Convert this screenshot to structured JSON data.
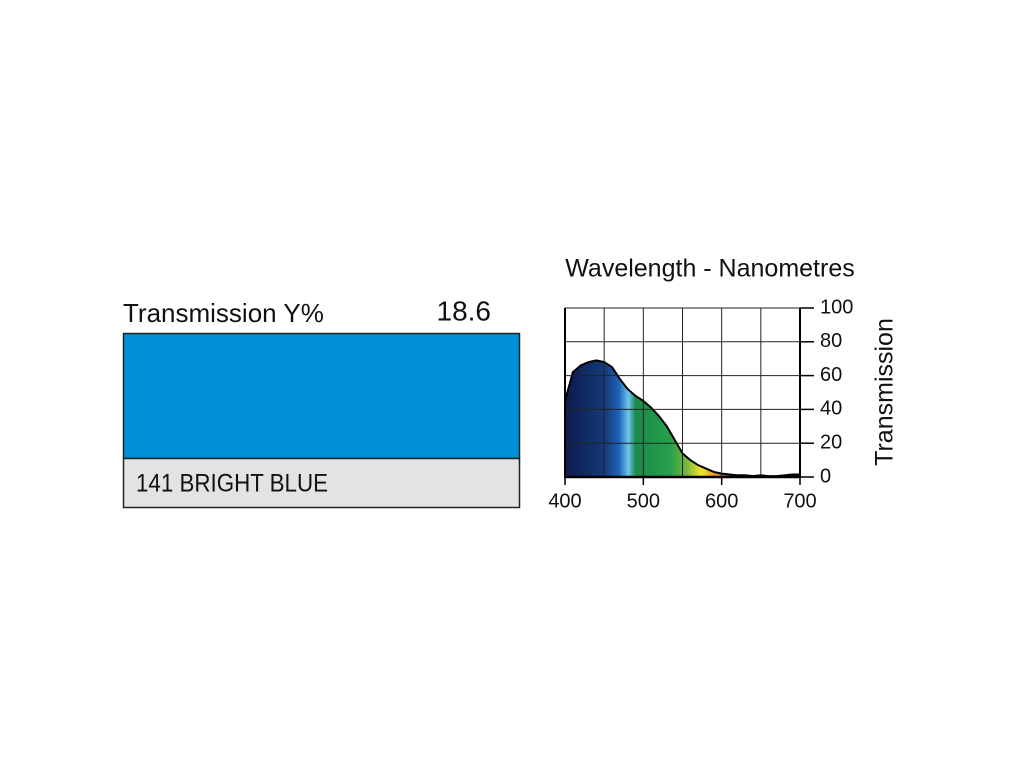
{
  "swatch": {
    "label": "Transmission Y%",
    "value": 18.6,
    "name": "141 BRIGHT BLUE",
    "color": "#0090d8",
    "name_background": "#e2e3e5"
  },
  "chart_data": {
    "type": "area",
    "title": "Wavelength - Nanometres",
    "ylabel": "Transmission",
    "x": [
      400,
      410,
      420,
      430,
      440,
      450,
      460,
      470,
      480,
      490,
      500,
      510,
      520,
      530,
      540,
      550,
      560,
      570,
      580,
      590,
      600,
      610,
      620,
      630,
      640,
      650,
      660,
      670,
      680,
      690,
      700
    ],
    "values": [
      45,
      62,
      66,
      68,
      69,
      68,
      65,
      58,
      52,
      48,
      45,
      41,
      36,
      30,
      22,
      14,
      10,
      7,
      5,
      3,
      2,
      1.5,
      1,
      1,
      0.5,
      1,
      0.5,
      0.5,
      1,
      1.5,
      1.5
    ],
    "xlim": [
      400,
      700
    ],
    "xticks": [
      400,
      500,
      600,
      700
    ],
    "x_gridlines": [
      450,
      550,
      650
    ],
    "ylim": [
      0,
      100
    ],
    "yticks": [
      0,
      20,
      40,
      60,
      80,
      100
    ],
    "grid": true,
    "color": "#000000"
  }
}
